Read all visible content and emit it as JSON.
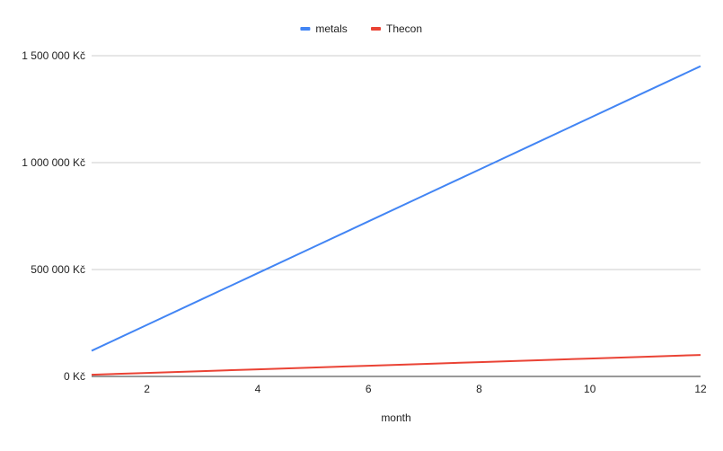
{
  "chart_data": {
    "type": "line",
    "title": "",
    "xlabel": "month",
    "ylabel": "",
    "xlim": [
      1,
      12
    ],
    "ylim": [
      0,
      1500000
    ],
    "x_ticks": [
      2,
      4,
      6,
      8,
      10,
      12
    ],
    "x_tick_labels": [
      "2",
      "4",
      "6",
      "8",
      "10",
      "12"
    ],
    "y_ticks": [
      0,
      500000,
      1000000,
      1500000
    ],
    "y_tick_labels": [
      "0 Kč",
      "500 000 Kč",
      "1 000 000 Kč",
      "1 500 000 Kč"
    ],
    "grid": "horizontal",
    "legend_position": "top-center",
    "x": [
      1,
      2,
      3,
      4,
      5,
      6,
      7,
      8,
      9,
      10,
      11,
      12
    ],
    "series": [
      {
        "name": "metals",
        "color": "#4285f4",
        "values": [
          120000,
          241000,
          362000,
          483000,
          604000,
          725000,
          846000,
          967000,
          1088000,
          1209000,
          1330000,
          1451000
        ]
      },
      {
        "name": "Thecon",
        "color": "#ea4335",
        "values": [
          8000,
          16400,
          24800,
          33200,
          41600,
          50000,
          58400,
          66800,
          75200,
          83600,
          92000,
          100400
        ]
      }
    ]
  }
}
